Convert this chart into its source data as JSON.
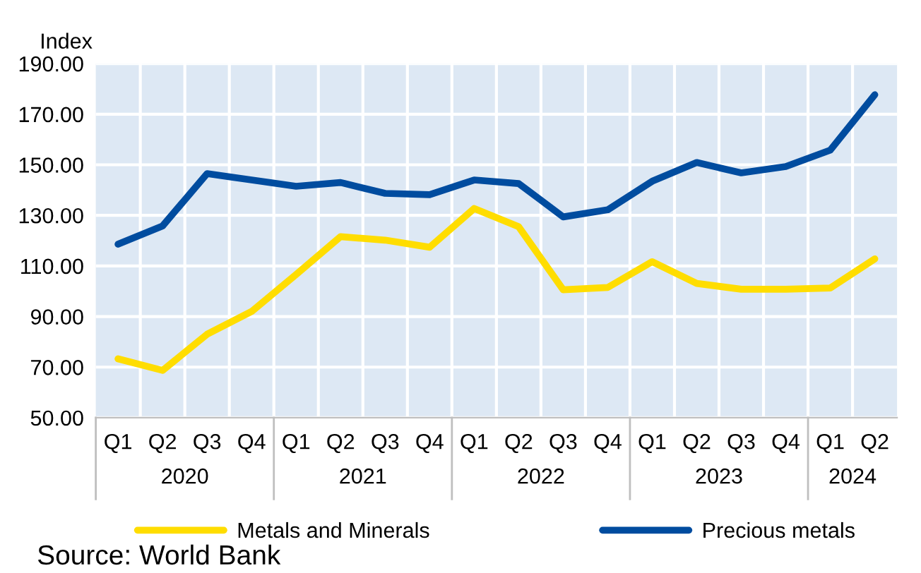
{
  "chart_data": {
    "type": "line",
    "ylabel": "Index",
    "categories": [
      "Q1",
      "Q2",
      "Q3",
      "Q4",
      "Q1",
      "Q2",
      "Q3",
      "Q4",
      "Q1",
      "Q2",
      "Q3",
      "Q4",
      "Q1",
      "Q2",
      "Q3",
      "Q4",
      "Q1",
      "Q2"
    ],
    "series": [
      {
        "name": "Metals and Minerals",
        "color": "#ffdd00",
        "values": [
          73.3,
          68.7,
          83,
          92,
          106.6,
          121.6,
          120.2,
          117.4,
          132.7,
          125.5,
          100.6,
          101.5,
          111.7,
          103.1,
          100.8,
          100.8,
          101.3,
          112.8
        ]
      },
      {
        "name": "Precious metals",
        "color": "#004c9f",
        "values": [
          118.6,
          125.8,
          146.5,
          144,
          141.5,
          143,
          138.7,
          138.2,
          144,
          142.6,
          129.4,
          132.2,
          143.5,
          150.9,
          146.8,
          149.3,
          155.8,
          177.7
        ]
      }
    ],
    "ylim": [
      50,
      190
    ],
    "yticks": [
      {
        "value": 50,
        "label": "50.00"
      },
      {
        "value": 70,
        "label": "70.00"
      },
      {
        "value": 90,
        "label": "90.00"
      },
      {
        "value": 110,
        "label": "110.00"
      },
      {
        "value": 130,
        "label": "130.00"
      },
      {
        "value": 150,
        "label": "150.00"
      },
      {
        "value": 170,
        "label": "170.00"
      },
      {
        "value": 190,
        "label": "190.00"
      }
    ],
    "grid": true,
    "legend": "bottom",
    "marker": "none",
    "line_style": "solid",
    "annotations": [
      "2020",
      "2021",
      "2022",
      "2023",
      "2024",
      "Source: World Bank"
    ]
  }
}
